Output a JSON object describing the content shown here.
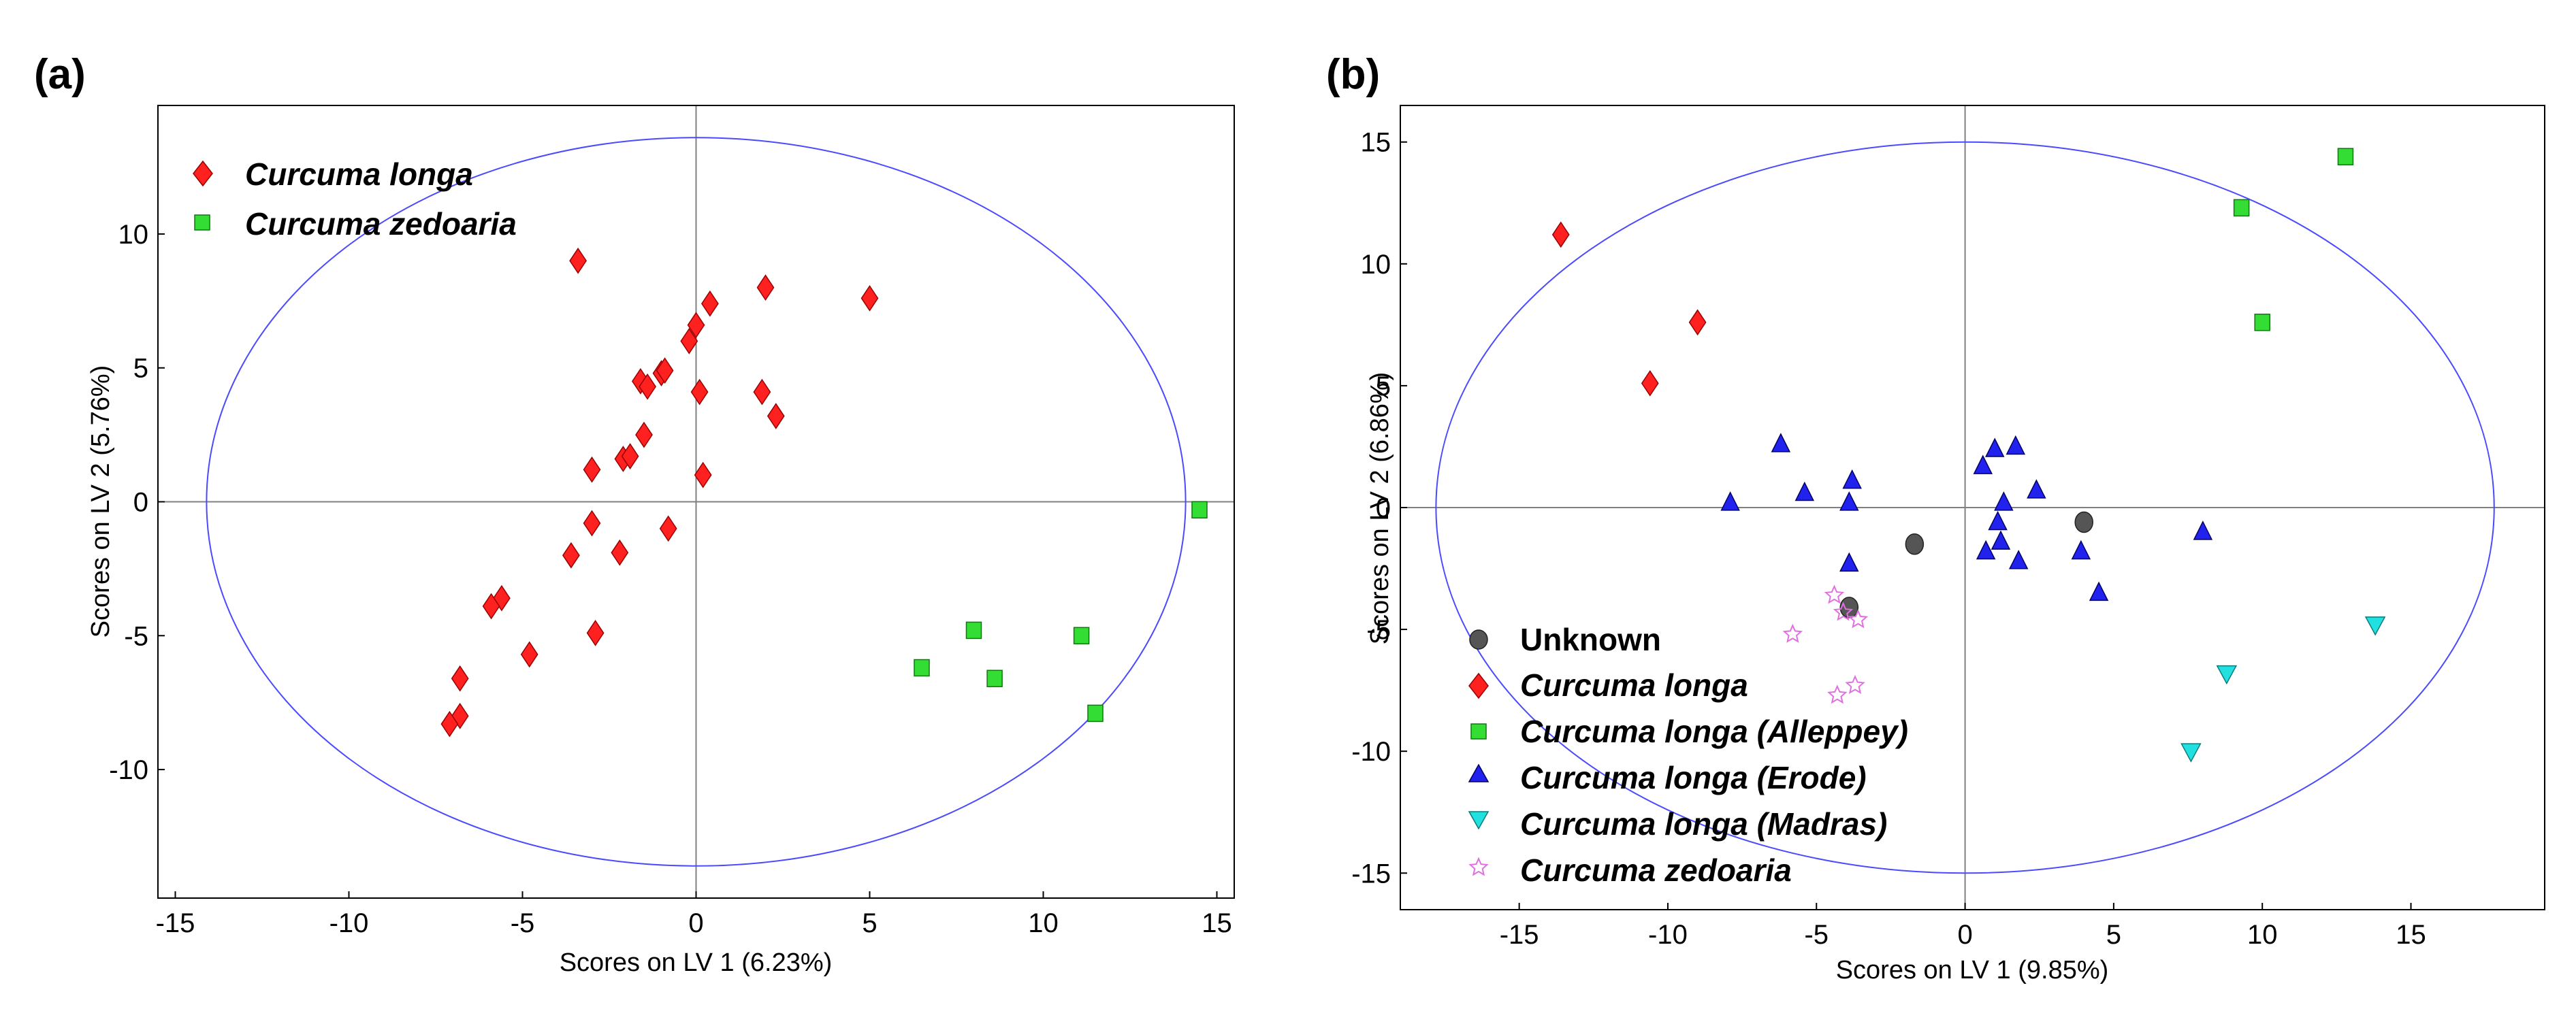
{
  "chart_data": [
    {
      "panel_label": "(a)",
      "type": "scatter",
      "xlabel": "Scores on LV 1 (6.23%)",
      "ylabel": "Scores on LV 2 (5.76%)",
      "xlim": [
        -15.5,
        15.5
      ],
      "ylim": [
        -14.8,
        14.8
      ],
      "xticks": [
        -15,
        -10,
        -5,
        0,
        5,
        10,
        15
      ],
      "yticks": [
        -10,
        -5,
        0,
        5,
        10
      ],
      "ellipse": {
        "rx": 14.1,
        "ry": 13.6
      },
      "legend_position": "top-left",
      "series": [
        {
          "name": "Curcuma longa",
          "marker": "diamond",
          "color": "#ff2020",
          "points": [
            [
              -3.4,
              9.0
            ],
            [
              2.0,
              8.0
            ],
            [
              0.4,
              7.4
            ],
            [
              5.0,
              7.6
            ],
            [
              0.0,
              6.6
            ],
            [
              -0.2,
              6.0
            ],
            [
              -1.0,
              4.8
            ],
            [
              -0.9,
              4.9
            ],
            [
              -1.6,
              4.5
            ],
            [
              -1.4,
              4.3
            ],
            [
              0.1,
              4.1
            ],
            [
              1.9,
              4.1
            ],
            [
              2.3,
              3.2
            ],
            [
              -1.5,
              2.5
            ],
            [
              -2.1,
              1.6
            ],
            [
              -1.9,
              1.7
            ],
            [
              -3.0,
              1.2
            ],
            [
              0.2,
              1.0
            ],
            [
              -3.0,
              -0.8
            ],
            [
              -0.8,
              -1.0
            ],
            [
              -3.6,
              -2.0
            ],
            [
              -2.2,
              -1.9
            ],
            [
              -5.6,
              -3.6
            ],
            [
              -5.9,
              -3.9
            ],
            [
              -2.9,
              -4.9
            ],
            [
              -4.8,
              -5.7
            ],
            [
              -6.8,
              -6.6
            ],
            [
              -6.8,
              -8.0
            ],
            [
              -7.1,
              -8.3
            ]
          ]
        },
        {
          "name": "Curcuma zedoaria",
          "marker": "square",
          "color": "#33dd33",
          "points": [
            [
              14.5,
              -0.3
            ],
            [
              8.0,
              -4.8
            ],
            [
              11.1,
              -5.0
            ],
            [
              6.5,
              -6.2
            ],
            [
              8.6,
              -6.6
            ],
            [
              11.5,
              -7.9
            ]
          ]
        }
      ]
    },
    {
      "panel_label": "(b)",
      "type": "scatter",
      "xlabel": "Scores on LV 1 (9.85%)",
      "ylabel": "Scores on LV 2 (6.86%)",
      "xlim": [
        -19,
        19.5
      ],
      "ylim": [
        -16.5,
        16.5
      ],
      "xticks": [
        -15,
        -10,
        -5,
        0,
        5,
        10,
        15
      ],
      "yticks": [
        -15,
        -10,
        -5,
        0,
        5,
        10,
        15
      ],
      "ellipse": {
        "rx": 17.8,
        "ry": 15.0
      },
      "legend_position": "bottom-left",
      "series": [
        {
          "name": "Unknown",
          "marker": "circle",
          "color": "#555555",
          "points": [
            [
              -1.7,
              -1.5
            ],
            [
              4.0,
              -0.6
            ],
            [
              -3.9,
              -4.1
            ]
          ]
        },
        {
          "name": "Curcuma longa",
          "marker": "diamond",
          "color": "#ff2020",
          "points": [
            [
              -13.6,
              11.2
            ],
            [
              -9.0,
              7.6
            ],
            [
              -10.6,
              5.1
            ]
          ]
        },
        {
          "name": "Curcuma longa (Alleppey)",
          "marker": "square",
          "color": "#33dd33",
          "points": [
            [
              12.8,
              14.4
            ],
            [
              9.3,
              12.3
            ],
            [
              10.0,
              7.6
            ]
          ]
        },
        {
          "name": "Curcuma longa (Erode)",
          "marker": "triangle-up",
          "color": "#2222ee",
          "points": [
            [
              -6.2,
              2.6
            ],
            [
              -7.9,
              0.2
            ],
            [
              -5.4,
              0.6
            ],
            [
              -3.8,
              1.1
            ],
            [
              -3.9,
              0.2
            ],
            [
              -3.9,
              -2.3
            ],
            [
              1.0,
              2.4
            ],
            [
              1.7,
              2.5
            ],
            [
              0.6,
              1.7
            ],
            [
              1.3,
              0.2
            ],
            [
              2.4,
              0.7
            ],
            [
              1.1,
              -0.6
            ],
            [
              0.7,
              -1.8
            ],
            [
              1.2,
              -1.4
            ],
            [
              1.8,
              -2.2
            ],
            [
              3.9,
              -1.8
            ],
            [
              4.5,
              -3.5
            ],
            [
              8.0,
              -1.0
            ]
          ]
        },
        {
          "name": "Curcuma longa (Madras)",
          "marker": "triangle-down",
          "color": "#22e0e0",
          "points": [
            [
              13.8,
              -4.8
            ],
            [
              8.8,
              -6.8
            ],
            [
              7.6,
              -10.0
            ]
          ]
        },
        {
          "name": "Curcuma zedoaria",
          "marker": "star",
          "color": "#e070e0",
          "points": [
            [
              -4.4,
              -3.6
            ],
            [
              -4.1,
              -4.3
            ],
            [
              -3.6,
              -4.6
            ],
            [
              -5.8,
              -5.2
            ],
            [
              -4.3,
              -7.7
            ],
            [
              -3.7,
              -7.3
            ]
          ]
        }
      ]
    }
  ]
}
